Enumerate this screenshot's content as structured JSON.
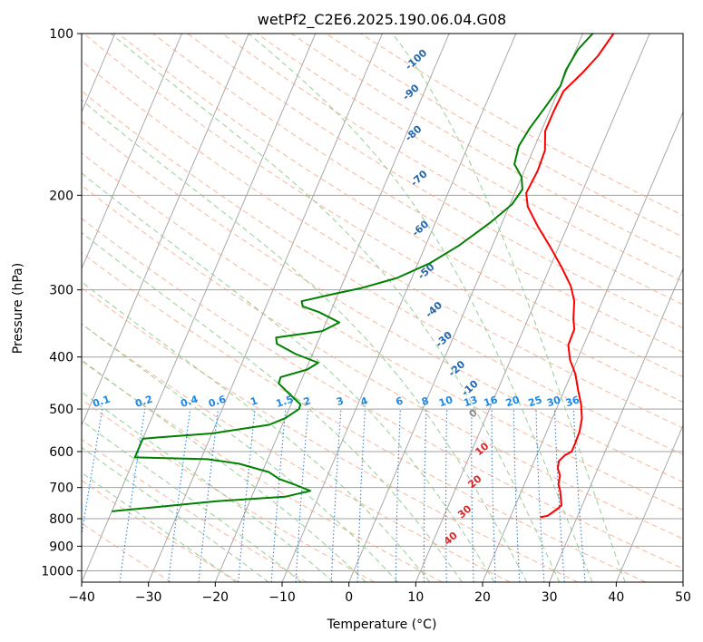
{
  "chart_data": {
    "type": "line",
    "title": "wetPf2_C2E6.2025.190.06.04.G08",
    "xlabel": "Temperature (°C)",
    "ylabel": "Pressure (hPa)",
    "xlim": [
      -40,
      50
    ],
    "ylim": [
      1050,
      100
    ],
    "yscale": "log",
    "x_ticks": [
      -40,
      -30,
      -20,
      -10,
      0,
      10,
      20,
      30,
      40,
      50
    ],
    "y_ticks": [
      100,
      200,
      300,
      400,
      500,
      600,
      700,
      800,
      900,
      1000
    ],
    "grid": true,
    "series": [
      {
        "role": "temperature",
        "color": "#ff0000",
        "points": [
          [
            4.6,
            100
          ],
          [
            3.7,
            110
          ],
          [
            2.5,
            118
          ],
          [
            0.8,
            128
          ],
          [
            0.6,
            140
          ],
          [
            0.6,
            152
          ],
          [
            1.8,
            165
          ],
          [
            2.0,
            180
          ],
          [
            1.7,
            198
          ],
          [
            2.8,
            210
          ],
          [
            5.5,
            228
          ],
          [
            8.8,
            250
          ],
          [
            11.7,
            272
          ],
          [
            14.3,
            295
          ],
          [
            15.8,
            315
          ],
          [
            16.8,
            340
          ],
          [
            17.6,
            355
          ],
          [
            17.7,
            380
          ],
          [
            18.9,
            405
          ],
          [
            20.6,
            430
          ],
          [
            22.0,
            460
          ],
          [
            23.4,
            490
          ],
          [
            24.4,
            520
          ],
          [
            24.9,
            550
          ],
          [
            25.0,
            580
          ],
          [
            25.0,
            600
          ],
          [
            24.2,
            610
          ],
          [
            23.7,
            625
          ],
          [
            24.0,
            645
          ],
          [
            24.8,
            665
          ],
          [
            25.1,
            690
          ],
          [
            25.8,
            710
          ],
          [
            26.4,
            735
          ],
          [
            26.9,
            755
          ],
          [
            26.5,
            768
          ],
          [
            25.5,
            790
          ],
          [
            24.5,
            795
          ]
        ]
      },
      {
        "role": "dewpoint",
        "color": "#008000",
        "points": [
          [
            1.5,
            100
          ],
          [
            0.3,
            107
          ],
          [
            -0.2,
            117
          ],
          [
            0.0,
            125
          ],
          [
            -1.0,
            138
          ],
          [
            -1.9,
            150
          ],
          [
            -2.4,
            162
          ],
          [
            -1.9,
            175
          ],
          [
            0.0,
            185
          ],
          [
            0.9,
            195
          ],
          [
            0.3,
            208
          ],
          [
            -1.8,
            225
          ],
          [
            -5.0,
            248
          ],
          [
            -8.3,
            268
          ],
          [
            -12.2,
            285
          ],
          [
            -17.0,
            298
          ],
          [
            -20.5,
            305
          ],
          [
            -25.0,
            315
          ],
          [
            -24.5,
            322
          ],
          [
            -21.7,
            330
          ],
          [
            -18.0,
            345
          ],
          [
            -20.0,
            358
          ],
          [
            -26.5,
            368
          ],
          [
            -26.0,
            378
          ],
          [
            -22.5,
            395
          ],
          [
            -18.6,
            410
          ],
          [
            -19.8,
            422
          ],
          [
            -23.3,
            436
          ],
          [
            -23.2,
            448
          ],
          [
            -21.0,
            468
          ],
          [
            -18.6,
            490
          ],
          [
            -18.5,
            500
          ],
          [
            -20.0,
            520
          ],
          [
            -22.0,
            535
          ],
          [
            -30.0,
            555
          ],
          [
            -38.0,
            565
          ],
          [
            -40.0,
            568
          ],
          [
            -40.0,
            615
          ],
          [
            -29.0,
            620
          ],
          [
            -24.0,
            632
          ],
          [
            -19.0,
            655
          ],
          [
            -17.0,
            675
          ],
          [
            -14.5,
            690
          ],
          [
            -11.6,
            710
          ],
          [
            -15.0,
            728
          ],
          [
            -25.0,
            742
          ],
          [
            -33.0,
            760
          ],
          [
            -40.0,
            775
          ]
        ]
      }
    ],
    "dry_adiabat_labels": [
      "-100",
      "-90",
      "-80",
      "-70",
      "-60",
      "-50",
      "-40",
      "-30",
      "-20",
      "-10"
    ],
    "moist_adiabat_labels": [
      "0",
      "10",
      "20",
      "30",
      "40"
    ],
    "mixing_ratio_labels": [
      "0.1",
      "0.2",
      "0.4",
      "0.6",
      "1",
      "1.5",
      "2",
      "3",
      "4",
      "6",
      "8",
      "10",
      "13",
      "16",
      "20",
      "25",
      "30",
      "36"
    ],
    "colors": {
      "temperature": "#ff0000",
      "dewpoint": "#008000",
      "isotherm": "#a0a0a0",
      "dry_adiabat": "#f4a582",
      "moist_adiabat": "#8cc98c",
      "mixing_ratio": "#1e88e5",
      "dry_label": "#2166ac",
      "moist_label": "#d62728"
    }
  }
}
